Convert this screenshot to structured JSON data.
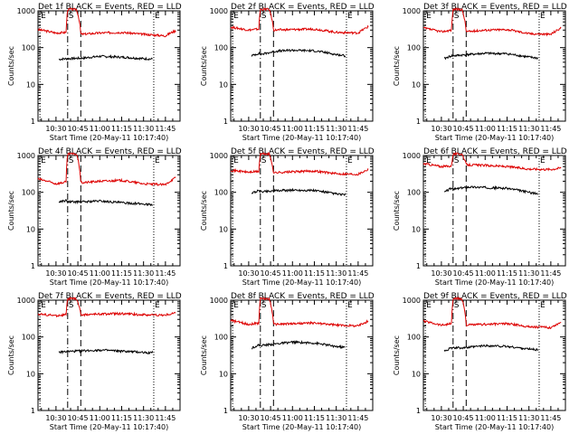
{
  "figure": {
    "ylabel": "Counts/sec",
    "xlabel": "Start Time (20-May-11 10:17:40)",
    "colors": {
      "events": "#000000",
      "lld": "#dd0000",
      "axes": "#000000"
    }
  },
  "chart_data": [
    {
      "type": "line",
      "title": "Det 1f BLACK = Events, RED = LLD",
      "xlabel": "Start Time (20-May-11 10:17:40)",
      "ylabel": "Counts/sec",
      "x_ticks": [
        "10:30",
        "10:45",
        "11:00",
        "11:15",
        "11:30",
        "11:45"
      ],
      "yscale": "log",
      "ylim": [
        1,
        1000
      ],
      "xlim": [
        "10:17:40",
        "11:55"
      ],
      "y_ticks": [
        "1",
        "10",
        "100",
        "1000"
      ],
      "markers": [
        {
          "label": "E",
          "time": "10:19",
          "style": "dotted"
        },
        {
          "label": "S",
          "time": "10:38",
          "style": "dash-dot"
        },
        {
          "label": "",
          "time": "10:47",
          "style": "dashed"
        },
        {
          "label": "E",
          "time": "11:37",
          "style": "dotted"
        }
      ],
      "series": [
        {
          "name": "LLD",
          "color": "red",
          "x": [
            "10:17:40",
            "10:30",
            "10:37",
            "10:38",
            "10:44",
            "10:47",
            "11:00",
            "11:15",
            "11:30",
            "11:45",
            "11:52"
          ],
          "y": [
            310,
            250,
            260,
            1100,
            1100,
            230,
            250,
            260,
            230,
            210,
            290
          ]
        },
        {
          "name": "Events",
          "color": "black",
          "x": [
            "10:32",
            "10:37",
            "10:38",
            "10:49",
            "11:00",
            "11:15",
            "11:30",
            "11:36"
          ],
          "y": [
            48,
            50,
            50,
            52,
            58,
            55,
            50,
            49
          ]
        }
      ]
    },
    {
      "type": "line",
      "title": "Det 2f BLACK = Events, RED = LLD",
      "xlabel": "Start Time (20-May-11 10:17:40)",
      "ylabel": "Counts/sec",
      "x_ticks": [
        "10:30",
        "10:45",
        "11:00",
        "11:15",
        "11:30",
        "11:45"
      ],
      "yscale": "log",
      "ylim": [
        1,
        1000
      ],
      "xlim": [
        "10:17:40",
        "11:55"
      ],
      "y_ticks": [
        "1",
        "10",
        "100",
        "1000"
      ],
      "markers": [
        {
          "label": "E",
          "time": "10:19",
          "style": "dotted"
        },
        {
          "label": "S",
          "time": "10:38",
          "style": "dash-dot"
        },
        {
          "label": "",
          "time": "10:47",
          "style": "dashed"
        },
        {
          "label": "E",
          "time": "11:37",
          "style": "dotted"
        }
      ],
      "series": [
        {
          "name": "LLD",
          "color": "red",
          "x": [
            "10:17:40",
            "10:30",
            "10:37",
            "10:38",
            "10:44",
            "10:47",
            "11:00",
            "11:15",
            "11:30",
            "11:45",
            "11:52"
          ],
          "y": [
            360,
            300,
            320,
            1100,
            1100,
            300,
            310,
            320,
            260,
            250,
            370
          ]
        },
        {
          "name": "Events",
          "color": "black",
          "x": [
            "10:32",
            "10:37",
            "10:38",
            "10:49",
            "11:00",
            "11:15",
            "11:30",
            "11:36"
          ],
          "y": [
            60,
            70,
            65,
            80,
            85,
            82,
            65,
            60
          ]
        }
      ]
    },
    {
      "type": "line",
      "title": "Det 3f BLACK = Events, RED = LLD",
      "xlabel": "Start Time (20-May-11 10:17:40)",
      "ylabel": "Counts/sec",
      "x_ticks": [
        "10:30",
        "10:45",
        "11:00",
        "11:15",
        "11:30",
        "11:45"
      ],
      "yscale": "log",
      "ylim": [
        1,
        1000
      ],
      "xlim": [
        "10:17:40",
        "11:55"
      ],
      "y_ticks": [
        "1",
        "10",
        "100",
        "1000"
      ],
      "markers": [
        {
          "label": "E",
          "time": "10:19",
          "style": "dotted"
        },
        {
          "label": "S",
          "time": "10:38",
          "style": "dash-dot"
        },
        {
          "label": "",
          "time": "10:47",
          "style": "dashed"
        },
        {
          "label": "E",
          "time": "11:37",
          "style": "dotted"
        }
      ],
      "series": [
        {
          "name": "LLD",
          "color": "red",
          "x": [
            "10:17:40",
            "10:30",
            "10:37",
            "10:38",
            "10:44",
            "10:47",
            "11:00",
            "11:15",
            "11:30",
            "11:45",
            "11:52"
          ],
          "y": [
            340,
            270,
            300,
            1100,
            1100,
            270,
            300,
            310,
            240,
            230,
            340
          ]
        },
        {
          "name": "Events",
          "color": "black",
          "x": [
            "10:32",
            "10:37",
            "10:38",
            "10:49",
            "11:00",
            "11:15",
            "11:30",
            "11:36"
          ],
          "y": [
            50,
            60,
            60,
            65,
            70,
            68,
            55,
            52
          ]
        }
      ]
    },
    {
      "type": "line",
      "title": "Det 4f BLACK = Events, RED = LLD",
      "xlabel": "Start Time (20-May-11 10:17:40)",
      "ylabel": "Counts/sec",
      "x_ticks": [
        "10:30",
        "10:45",
        "11:00",
        "11:15",
        "11:30",
        "11:45"
      ],
      "yscale": "log",
      "ylim": [
        1,
        1000
      ],
      "xlim": [
        "10:17:40",
        "11:55"
      ],
      "y_ticks": [
        "1",
        "10",
        "100",
        "1000"
      ],
      "markers": [
        {
          "label": "E",
          "time": "10:19",
          "style": "dotted"
        },
        {
          "label": "S",
          "time": "10:38",
          "style": "dash-dot"
        },
        {
          "label": "",
          "time": "10:47",
          "style": "dashed"
        },
        {
          "label": "E",
          "time": "11:37",
          "style": "dotted"
        }
      ],
      "series": [
        {
          "name": "LLD",
          "color": "red",
          "x": [
            "10:17:40",
            "10:30",
            "10:37",
            "10:38",
            "10:44",
            "10:47",
            "11:00",
            "11:15",
            "11:30",
            "11:45",
            "11:52"
          ],
          "y": [
            230,
            170,
            190,
            1100,
            1100,
            180,
            200,
            210,
            170,
            160,
            250
          ]
        },
        {
          "name": "Events",
          "color": "black",
          "x": [
            "10:32",
            "10:37",
            "10:38",
            "10:49",
            "11:00",
            "11:15",
            "11:30",
            "11:36"
          ],
          "y": [
            55,
            60,
            55,
            55,
            58,
            52,
            48,
            46
          ]
        }
      ]
    },
    {
      "type": "line",
      "title": "Det 5f BLACK = Events, RED = LLD",
      "xlabel": "Start Time (20-May-11 10:17:40)",
      "ylabel": "Counts/sec",
      "x_ticks": [
        "10:30",
        "10:45",
        "11:00",
        "11:15",
        "11:30",
        "11:45"
      ],
      "yscale": "log",
      "ylim": [
        1,
        1000
      ],
      "xlim": [
        "10:17:40",
        "11:55"
      ],
      "y_ticks": [
        "1",
        "10",
        "100",
        "1000"
      ],
      "markers": [
        {
          "label": "E",
          "time": "10:19",
          "style": "dotted"
        },
        {
          "label": "S",
          "time": "10:38",
          "style": "dash-dot"
        },
        {
          "label": "",
          "time": "10:47",
          "style": "dashed"
        },
        {
          "label": "E",
          "time": "11:37",
          "style": "dotted"
        }
      ],
      "series": [
        {
          "name": "LLD",
          "color": "red",
          "x": [
            "10:17:40",
            "10:30",
            "10:37",
            "10:38",
            "10:44",
            "10:47",
            "11:00",
            "11:15",
            "11:30",
            "11:45",
            "11:52"
          ],
          "y": [
            400,
            350,
            370,
            1100,
            1100,
            340,
            360,
            380,
            320,
            310,
            420
          ]
        },
        {
          "name": "Events",
          "color": "black",
          "x": [
            "10:32",
            "10:37",
            "10:38",
            "10:49",
            "11:00",
            "11:15",
            "11:30",
            "11:36"
          ],
          "y": [
            95,
            110,
            105,
            110,
            115,
            112,
            90,
            85
          ]
        }
      ]
    },
    {
      "type": "line",
      "title": "Det 6f BLACK = Events, RED = LLD",
      "xlabel": "Start Time (20-May-11 10:17:40)",
      "ylabel": "Counts/sec",
      "x_ticks": [
        "10:30",
        "10:45",
        "11:00",
        "11:15",
        "11:30",
        "11:45"
      ],
      "yscale": "log",
      "ylim": [
        1,
        1000
      ],
      "xlim": [
        "10:17:40",
        "11:55"
      ],
      "y_ticks": [
        "1",
        "10",
        "100",
        "1000"
      ],
      "markers": [
        {
          "label": "E",
          "time": "10:19",
          "style": "dotted"
        },
        {
          "label": "S",
          "time": "10:38",
          "style": "dash-dot"
        },
        {
          "label": "",
          "time": "10:47",
          "style": "dashed"
        },
        {
          "label": "E",
          "time": "11:37",
          "style": "dotted"
        }
      ],
      "series": [
        {
          "name": "LLD",
          "color": "red",
          "x": [
            "10:17:40",
            "10:30",
            "10:37",
            "10:38",
            "10:44",
            "10:47",
            "11:00",
            "11:15",
            "11:30",
            "11:45",
            "11:52"
          ],
          "y": [
            600,
            500,
            520,
            1100,
            1100,
            560,
            540,
            500,
            430,
            420,
            460
          ]
        },
        {
          "name": "Events",
          "color": "black",
          "x": [
            "10:32",
            "10:37",
            "10:38",
            "10:49",
            "11:00",
            "11:15",
            "11:30",
            "11:36"
          ],
          "y": [
            100,
            130,
            120,
            140,
            135,
            128,
            100,
            90
          ]
        }
      ]
    },
    {
      "type": "line",
      "title": "Det 7f BLACK = Events, RED = LLD",
      "xlabel": "Start Time (20-May-11 10:17:40)",
      "ylabel": "Counts/sec",
      "x_ticks": [
        "10:30",
        "10:45",
        "11:00",
        "11:15",
        "11:30",
        "11:45"
      ],
      "yscale": "log",
      "ylim": [
        1,
        1000
      ],
      "xlim": [
        "10:17:40",
        "11:55"
      ],
      "y_ticks": [
        "1",
        "10",
        "100",
        "1000"
      ],
      "markers": [
        {
          "label": "E",
          "time": "10:19",
          "style": "dotted"
        },
        {
          "label": "S",
          "time": "10:38",
          "style": "dash-dot"
        },
        {
          "label": "",
          "time": "10:47",
          "style": "dashed"
        },
        {
          "label": "E",
          "time": "11:37",
          "style": "dotted"
        }
      ],
      "series": [
        {
          "name": "LLD",
          "color": "red",
          "x": [
            "10:17:40",
            "10:30",
            "10:37",
            "10:38",
            "10:44",
            "10:47",
            "11:00",
            "11:15",
            "11:30",
            "11:45",
            "11:52"
          ],
          "y": [
            420,
            380,
            400,
            1100,
            1100,
            400,
            420,
            430,
            400,
            390,
            450
          ]
        },
        {
          "name": "Events",
          "color": "black",
          "x": [
            "10:32",
            "10:37",
            "10:38",
            "10:49",
            "11:00",
            "11:15",
            "11:30",
            "11:36"
          ],
          "y": [
            38,
            40,
            40,
            42,
            44,
            41,
            38,
            37
          ]
        }
      ]
    },
    {
      "type": "line",
      "title": "Det 8f BLACK = Events, RED = LLD",
      "xlabel": "Start Time (20-May-11 10:17:40)",
      "ylabel": "Counts/sec",
      "x_ticks": [
        "10:30",
        "10:45",
        "11:00",
        "11:15",
        "11:30",
        "11:45"
      ],
      "yscale": "log",
      "ylim": [
        1,
        1000
      ],
      "xlim": [
        "10:17:40",
        "11:55"
      ],
      "y_ticks": [
        "1",
        "10",
        "100",
        "1000"
      ],
      "markers": [
        {
          "label": "E",
          "time": "10:19",
          "style": "dotted"
        },
        {
          "label": "S",
          "time": "10:38",
          "style": "dash-dot"
        },
        {
          "label": "",
          "time": "10:47",
          "style": "dashed"
        },
        {
          "label": "E",
          "time": "11:37",
          "style": "dotted"
        }
      ],
      "series": [
        {
          "name": "LLD",
          "color": "red",
          "x": [
            "10:17:40",
            "10:30",
            "10:37",
            "10:38",
            "10:44",
            "10:47",
            "11:00",
            "11:15",
            "11:30",
            "11:45",
            "11:52"
          ],
          "y": [
            280,
            220,
            240,
            1100,
            1100,
            220,
            230,
            240,
            210,
            200,
            270
          ]
        },
        {
          "name": "Events",
          "color": "black",
          "x": [
            "10:32",
            "10:37",
            "10:38",
            "10:49",
            "11:00",
            "11:15",
            "11:30",
            "11:36"
          ],
          "y": [
            50,
            60,
            58,
            65,
            72,
            68,
            55,
            52
          ]
        }
      ]
    },
    {
      "type": "line",
      "title": "Det 9f BLACK = Events, RED = LLD",
      "xlabel": "Start Time (20-May-11 10:17:40)",
      "ylabel": "Counts/sec",
      "x_ticks": [
        "10:30",
        "10:45",
        "11:00",
        "11:15",
        "11:30",
        "11:45"
      ],
      "yscale": "log",
      "ylim": [
        1,
        1000
      ],
      "xlim": [
        "10:17:40",
        "11:55"
      ],
      "y_ticks": [
        "1",
        "10",
        "100",
        "1000"
      ],
      "markers": [
        {
          "label": "E",
          "time": "10:19",
          "style": "dotted"
        },
        {
          "label": "S",
          "time": "10:38",
          "style": "dash-dot"
        },
        {
          "label": "",
          "time": "10:47",
          "style": "dashed"
        },
        {
          "label": "E",
          "time": "11:37",
          "style": "dotted"
        }
      ],
      "series": [
        {
          "name": "LLD",
          "color": "red",
          "x": [
            "10:17:40",
            "10:30",
            "10:37",
            "10:38",
            "10:44",
            "10:47",
            "11:00",
            "11:15",
            "11:30",
            "11:45",
            "11:52"
          ],
          "y": [
            270,
            210,
            230,
            1100,
            1100,
            210,
            220,
            230,
            190,
            180,
            250
          ]
        },
        {
          "name": "Events",
          "color": "black",
          "x": [
            "10:32",
            "10:37",
            "10:38",
            "10:49",
            "11:00",
            "11:15",
            "11:30",
            "11:36"
          ],
          "y": [
            42,
            50,
            50,
            52,
            58,
            55,
            47,
            45
          ]
        }
      ]
    }
  ]
}
